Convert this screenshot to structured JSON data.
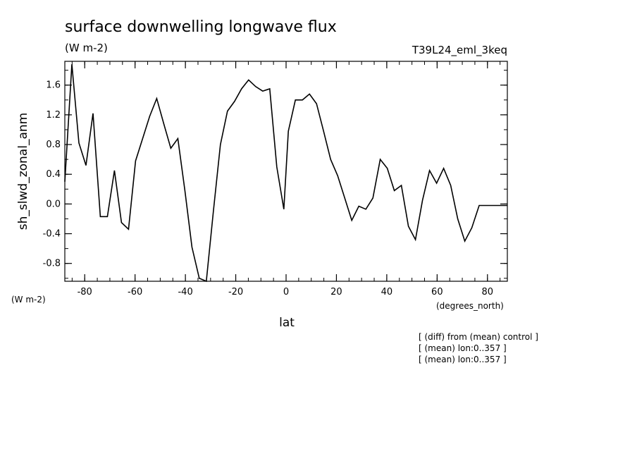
{
  "chart_data": {
    "type": "line",
    "title": "surface downwelling longwave flux",
    "subtitle": "(W m-2)",
    "run_label": "T39L24_eml_3keq",
    "xlabel": "lat",
    "ylabel": "sh_slwd_zonal_anm",
    "y_units": "(W m-2)",
    "x_units": "(degrees_north)",
    "xlim": [
      -87.9,
      87.9
    ],
    "ylim": [
      -1.04,
      1.92
    ],
    "x_ticks": [
      -80,
      -60,
      -40,
      -20,
      0,
      20,
      40,
      60,
      80
    ],
    "x_tick_labels": [
      "-80",
      "-60",
      "-40",
      "-20",
      "0",
      "20",
      "40",
      "60",
      "80"
    ],
    "y_ticks": [
      -0.8,
      -0.4,
      0.0,
      0.4,
      0.8,
      1.2,
      1.6
    ],
    "y_tick_labels": [
      "-0.8",
      "-0.4",
      "0.0",
      "0.4",
      "0.8",
      "1.2",
      "1.6"
    ],
    "notes": [
      "[ (diff) from (mean) control ]",
      "[ (mean) lon:0..357 ]",
      "[ (mean) lon:0..357 ]"
    ],
    "x": [
      -87.9,
      -85.1,
      -82.3,
      -79.5,
      -76.7,
      -73.8,
      -71.0,
      -68.2,
      -65.4,
      -62.6,
      -59.8,
      -57.0,
      -54.2,
      -51.4,
      -48.6,
      -45.8,
      -43.0,
      -40.2,
      -37.4,
      -34.5,
      -31.7,
      -28.9,
      -26.1,
      -23.3,
      -20.5,
      -17.7,
      -14.9,
      -12.1,
      -9.3,
      -6.5,
      -3.7,
      -0.9,
      0.9,
      3.7,
      6.5,
      9.3,
      12.1,
      14.9,
      17.7,
      20.5,
      23.3,
      26.1,
      28.9,
      31.7,
      34.5,
      37.4,
      40.2,
      43.0,
      45.8,
      48.6,
      51.4,
      54.2,
      57.0,
      59.8,
      62.6,
      65.4,
      68.2,
      71.0,
      73.8,
      76.7,
      79.5,
      82.3,
      85.1,
      87.9
    ],
    "series": [
      {
        "values": [
          0.3,
          1.88,
          0.82,
          0.52,
          1.22,
          -0.17,
          -0.17,
          0.45,
          -0.25,
          -0.34,
          0.58,
          0.88,
          1.18,
          1.42,
          1.08,
          0.75,
          0.88,
          0.18,
          -0.58,
          -1.0,
          -1.04,
          -0.1,
          0.8,
          1.25,
          1.38,
          1.55,
          1.67,
          1.58,
          1.52,
          1.55,
          0.5,
          -0.07,
          0.98,
          1.4,
          1.4,
          1.48,
          1.35,
          0.98,
          0.6,
          0.38,
          0.08,
          -0.22,
          -0.03,
          -0.07,
          0.08,
          0.6,
          0.48,
          0.18,
          0.25,
          -0.3,
          -0.48,
          0.05,
          0.45,
          0.28,
          0.48,
          0.25,
          -0.2,
          -0.5,
          -0.32,
          -0.02,
          -0.02,
          -0.02,
          -0.02,
          -0.02
        ]
      }
    ]
  }
}
